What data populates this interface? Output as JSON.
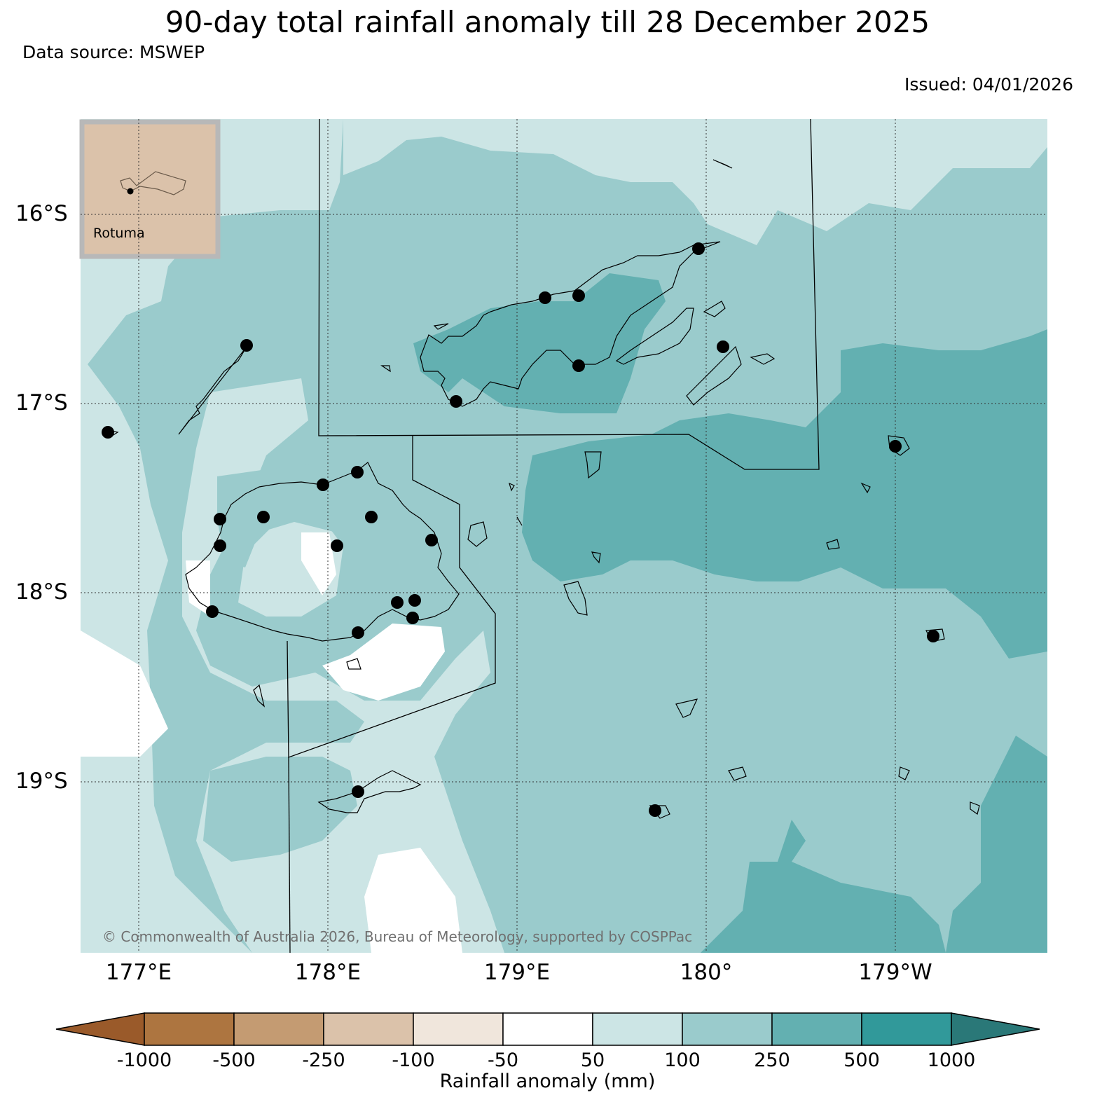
{
  "header": {
    "title": "90-day total rainfall anomaly till 28 December 2025",
    "source": "Data source: MSWEP",
    "issued": "Issued: 04/01/2026"
  },
  "map": {
    "lat_labels": [
      "16°S",
      "17°S",
      "18°S",
      "19°S"
    ],
    "lon_labels": [
      "177°E",
      "178°E",
      "179°E",
      "180°",
      "179°W"
    ],
    "inset_label": "Rotuma",
    "copyright": "© Commonwealth of Australia 2026, Bureau of Meteorology, supported by COSPPac",
    "colors": {
      "land_inset": "#dbc2aa",
      "inset_border": "#b8b8b8",
      "c50_100": "#cce5e5",
      "c100_250": "#9acbcc",
      "c250_500": "#63b0b1",
      "coast": "#000000"
    }
  },
  "colorbar": {
    "title": "Rainfall anomaly (mm)",
    "ticks": [
      "-1000",
      "-500",
      "-250",
      "-100",
      "-50",
      "50",
      "100",
      "250",
      "500",
      "1000"
    ],
    "colors": [
      "#9a5a2a",
      "#ad7540",
      "#c49b72",
      "#dbc2aa",
      "#f0e6dc",
      "#ffffff",
      "#cce5e5",
      "#9acbcc",
      "#63b0b1",
      "#31999a",
      "#2a7878"
    ]
  }
}
